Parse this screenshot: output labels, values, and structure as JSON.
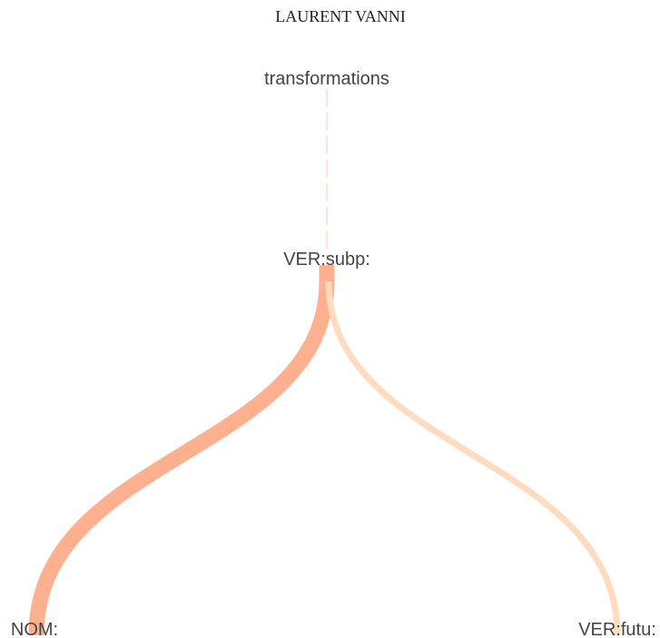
{
  "title": "LAURENT VANNI",
  "nodes": [
    {
      "label": "transformations"
    },
    {
      "label": "VER:subp:"
    },
    {
      "label": "NOM:"
    },
    {
      "label": "VER:futu:"
    }
  ]
}
